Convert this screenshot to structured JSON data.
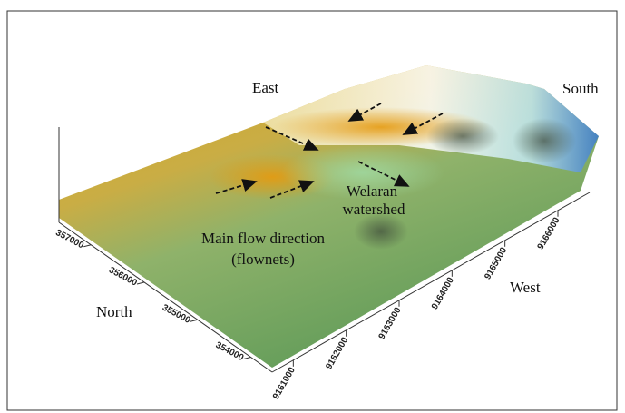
{
  "directions": {
    "east": "East",
    "south": "South",
    "north": "North",
    "west": "West"
  },
  "annotations": {
    "watershed": [
      "Welaran",
      "watershed"
    ],
    "flow": [
      "Main flow direction",
      "(flownets)"
    ]
  },
  "north_axis": {
    "ticks": [
      "357000",
      "356000",
      "355000",
      "354000"
    ]
  },
  "west_axis": {
    "ticks": [
      "9161000",
      "9162000",
      "9163000",
      "9164000",
      "9165000",
      "9166000"
    ]
  }
}
